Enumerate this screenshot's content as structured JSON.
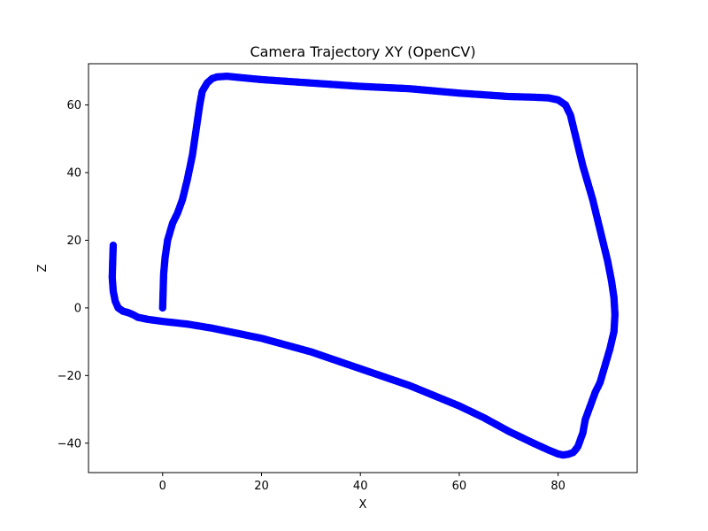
{
  "chart_data": {
    "type": "scatter",
    "title": "Camera Trajectory XY (OpenCV)",
    "xlabel": "X",
    "ylabel": "Z",
    "xlim": [
      -15,
      96
    ],
    "ylim": [
      -48.7,
      72.2
    ],
    "xticks": [
      0,
      20,
      40,
      60,
      80
    ],
    "yticks": [
      -40,
      -20,
      0,
      20,
      40,
      60
    ],
    "xtick_labels": [
      "0",
      "20",
      "40",
      "60",
      "80"
    ],
    "ytick_labels": [
      "−40",
      "−20",
      "0",
      "20",
      "40",
      "60"
    ],
    "grid": false,
    "marker_color": "#0000ff",
    "series": [
      {
        "x": [
          0,
          0.1,
          0.2,
          0.5,
          1,
          2,
          3,
          4,
          5,
          6,
          6.5,
          7,
          7.5,
          8,
          9,
          10,
          11,
          13,
          15,
          20,
          30,
          40,
          50,
          60,
          70,
          75,
          78,
          80,
          81.5,
          82.5,
          83,
          84,
          84.5,
          85,
          86,
          87,
          88,
          89,
          90,
          90.8,
          91.3,
          91.5,
          91.3,
          90.5,
          89.5,
          88.5,
          87.5,
          86.5,
          85.5,
          85,
          84.5,
          84,
          83.5,
          83,
          82,
          81,
          80,
          78,
          75,
          70,
          65,
          60,
          55,
          50,
          45,
          40,
          35,
          30,
          25,
          20,
          15,
          10,
          5,
          0,
          -3,
          -5,
          -6,
          -7,
          -8,
          -9,
          -9.6,
          -10,
          -10.2,
          -10.1,
          -10
        ],
        "y": [
          0,
          5,
          10,
          15,
          20,
          25,
          28,
          32,
          38,
          45,
          50,
          55,
          60,
          64,
          66.5,
          67.8,
          68.3,
          68.5,
          68.2,
          67.5,
          66.5,
          65.5,
          64.8,
          63.5,
          62.5,
          62.3,
          62.1,
          61.5,
          60,
          57,
          54,
          48,
          45,
          42,
          37,
          32,
          26,
          20,
          14,
          8,
          3,
          -2,
          -7,
          -12,
          -17,
          -22,
          -25,
          -29,
          -33,
          -37,
          -39,
          -41,
          -42,
          -42.8,
          -43.3,
          -43.5,
          -43.2,
          -42,
          -40,
          -36.5,
          -32.5,
          -29,
          -26,
          -23,
          -20.5,
          -18,
          -15.5,
          -13,
          -11,
          -9,
          -7.5,
          -6,
          -4.8,
          -4,
          -3.4,
          -2.8,
          -2,
          -1.4,
          -1,
          0,
          2,
          5,
          9,
          14,
          18.5
        ]
      }
    ]
  }
}
